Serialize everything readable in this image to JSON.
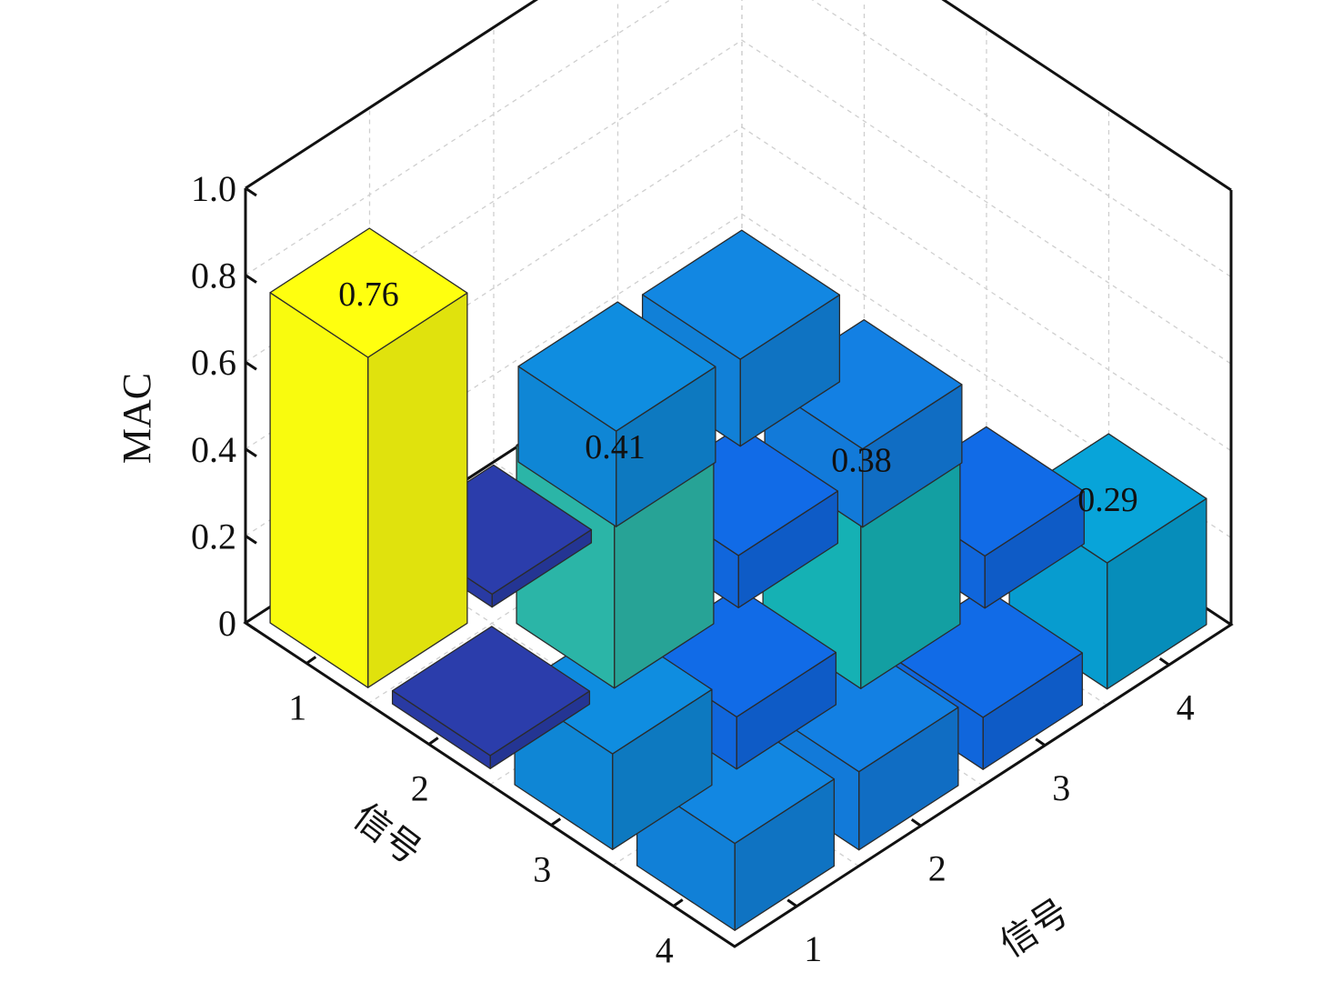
{
  "chart_data": {
    "type": "bar3d",
    "title": "",
    "zlabel": "MAC",
    "xlabel": "信号",
    "ylabel": "信号",
    "zlim": [
      0,
      1
    ],
    "zticks": [
      "0",
      "0.2",
      "0.4",
      "0.6",
      "0.8",
      "1.0"
    ],
    "x_categories": [
      "1",
      "2",
      "3",
      "4"
    ],
    "y_categories": [
      "1",
      "2",
      "3",
      "4"
    ],
    "grid": true,
    "matrix": [
      [
        0.76,
        0.03,
        0.22,
        0.2
      ],
      [
        0.03,
        0.41,
        0.12,
        0.18
      ],
      [
        0.22,
        0.12,
        0.38,
        0.12
      ],
      [
        0.2,
        0.18,
        0.12,
        0.29
      ]
    ],
    "data_labels": [
      {
        "row": 1,
        "col": 1,
        "text": "0.76"
      },
      {
        "row": 2,
        "col": 2,
        "text": "0.41"
      },
      {
        "row": 3,
        "col": 3,
        "text": "0.38"
      },
      {
        "row": 4,
        "col": 4,
        "text": "0.29"
      }
    ],
    "colormap": "parula"
  }
}
